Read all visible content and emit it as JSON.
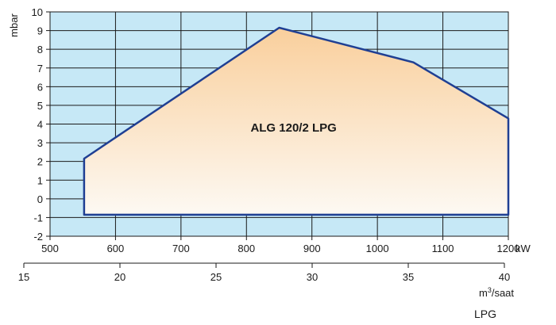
{
  "chart_data": {
    "type": "area",
    "title": "",
    "region_label": "ALG 120/2 LPG",
    "xlabel": "kW",
    "ylabel": "mbar",
    "xlim": [
      500,
      1200
    ],
    "ylim": [
      -2,
      10
    ],
    "x_ticks": [
      500,
      600,
      700,
      800,
      900,
      1000,
      1100,
      1200
    ],
    "x_tick_labels": [
      "500",
      "600",
      "700",
      "800",
      "900",
      "1000",
      "1100",
      "1200"
    ],
    "y_ticks": [
      -2,
      -1,
      0,
      1,
      2,
      3,
      4,
      5,
      6,
      7,
      8,
      9,
      10
    ],
    "y_tick_labels": [
      "-2",
      "-1",
      "0",
      "1",
      "2",
      "3",
      "4",
      "5",
      "6",
      "7",
      "8",
      "9",
      "10"
    ],
    "grid": true,
    "secondary_axis": {
      "label_base": "m",
      "label_sup": "3",
      "label_rest": "/saat",
      "ticks": [
        15,
        20,
        25,
        30,
        35,
        40
      ],
      "tick_labels": [
        "15",
        "20",
        "25",
        "30",
        "35",
        "40"
      ],
      "range": [
        15,
        40
      ]
    },
    "region": {
      "x": [
        552,
        552,
        850,
        1055,
        1200,
        1200
      ],
      "y": [
        -0.85,
        2.15,
        9.15,
        7.3,
        4.3,
        -0.85
      ]
    },
    "fuel_label": "LPG",
    "colors": {
      "plot_background": "#c6e8f6",
      "grid": "#1a1a1a",
      "region_outline": "#1f3f93",
      "region_fill_top": "#f9cf9c",
      "region_fill_bottom": "#fdf9f3"
    }
  }
}
